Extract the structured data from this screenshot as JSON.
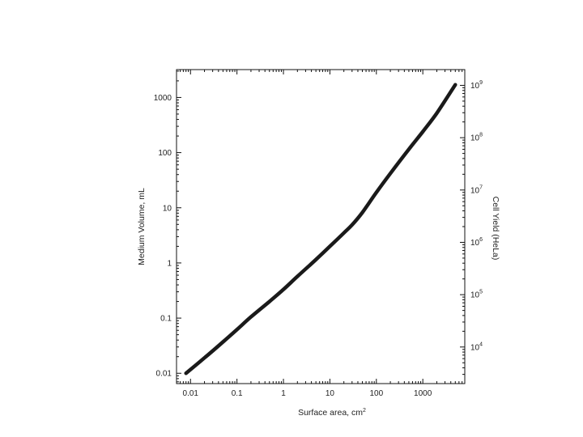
{
  "chart_data": {
    "type": "line",
    "xlabel": "Surface area, cm",
    "xlabel_sup": "2",
    "ylabel": "Medium Volume, mL",
    "y2label": "Cell Yield (HeLa)",
    "x_scale": "log",
    "y_scale": "log",
    "y2_scale": "log",
    "xlim": [
      0.005,
      8000
    ],
    "ylim": [
      0.0065,
      3200
    ],
    "y2lim": [
      2000,
      2000000000
    ],
    "grid": false,
    "x_ticks": [
      {
        "value": 0.01,
        "label": "0.01"
      },
      {
        "value": 0.1,
        "label": "0.1"
      },
      {
        "value": 1,
        "label": "1"
      },
      {
        "value": 10,
        "label": "10"
      },
      {
        "value": 100,
        "label": "100"
      },
      {
        "value": 1000,
        "label": "1000"
      }
    ],
    "y_ticks": [
      {
        "value": 0.01,
        "label": "0.01"
      },
      {
        "value": 0.1,
        "label": "0.1"
      },
      {
        "value": 1,
        "label": "1"
      },
      {
        "value": 10,
        "label": "10"
      },
      {
        "value": 100,
        "label": "100"
      },
      {
        "value": 1000,
        "label": "1000"
      }
    ],
    "y2_ticks": [
      {
        "value": 10000,
        "base": "10",
        "exp": "4"
      },
      {
        "value": 100000,
        "base": "10",
        "exp": "5"
      },
      {
        "value": 1000000,
        "base": "10",
        "exp": "6"
      },
      {
        "value": 10000000,
        "base": "10",
        "exp": "7"
      },
      {
        "value": 100000000,
        "base": "10",
        "exp": "8"
      },
      {
        "value": 1000000000,
        "base": "10",
        "exp": "9"
      }
    ],
    "series": [
      {
        "x": [
          0.008,
          0.02,
          0.05,
          0.1,
          0.2,
          0.5,
          1,
          2,
          5,
          10,
          20,
          30,
          50,
          100,
          200,
          500,
          1000,
          2000,
          5000
        ],
        "y": [
          0.01,
          0.019,
          0.037,
          0.062,
          0.105,
          0.2,
          0.33,
          0.57,
          1.15,
          2.0,
          3.5,
          4.9,
          8.2,
          19,
          42,
          115,
          240,
          520,
          1700
        ]
      }
    ]
  }
}
